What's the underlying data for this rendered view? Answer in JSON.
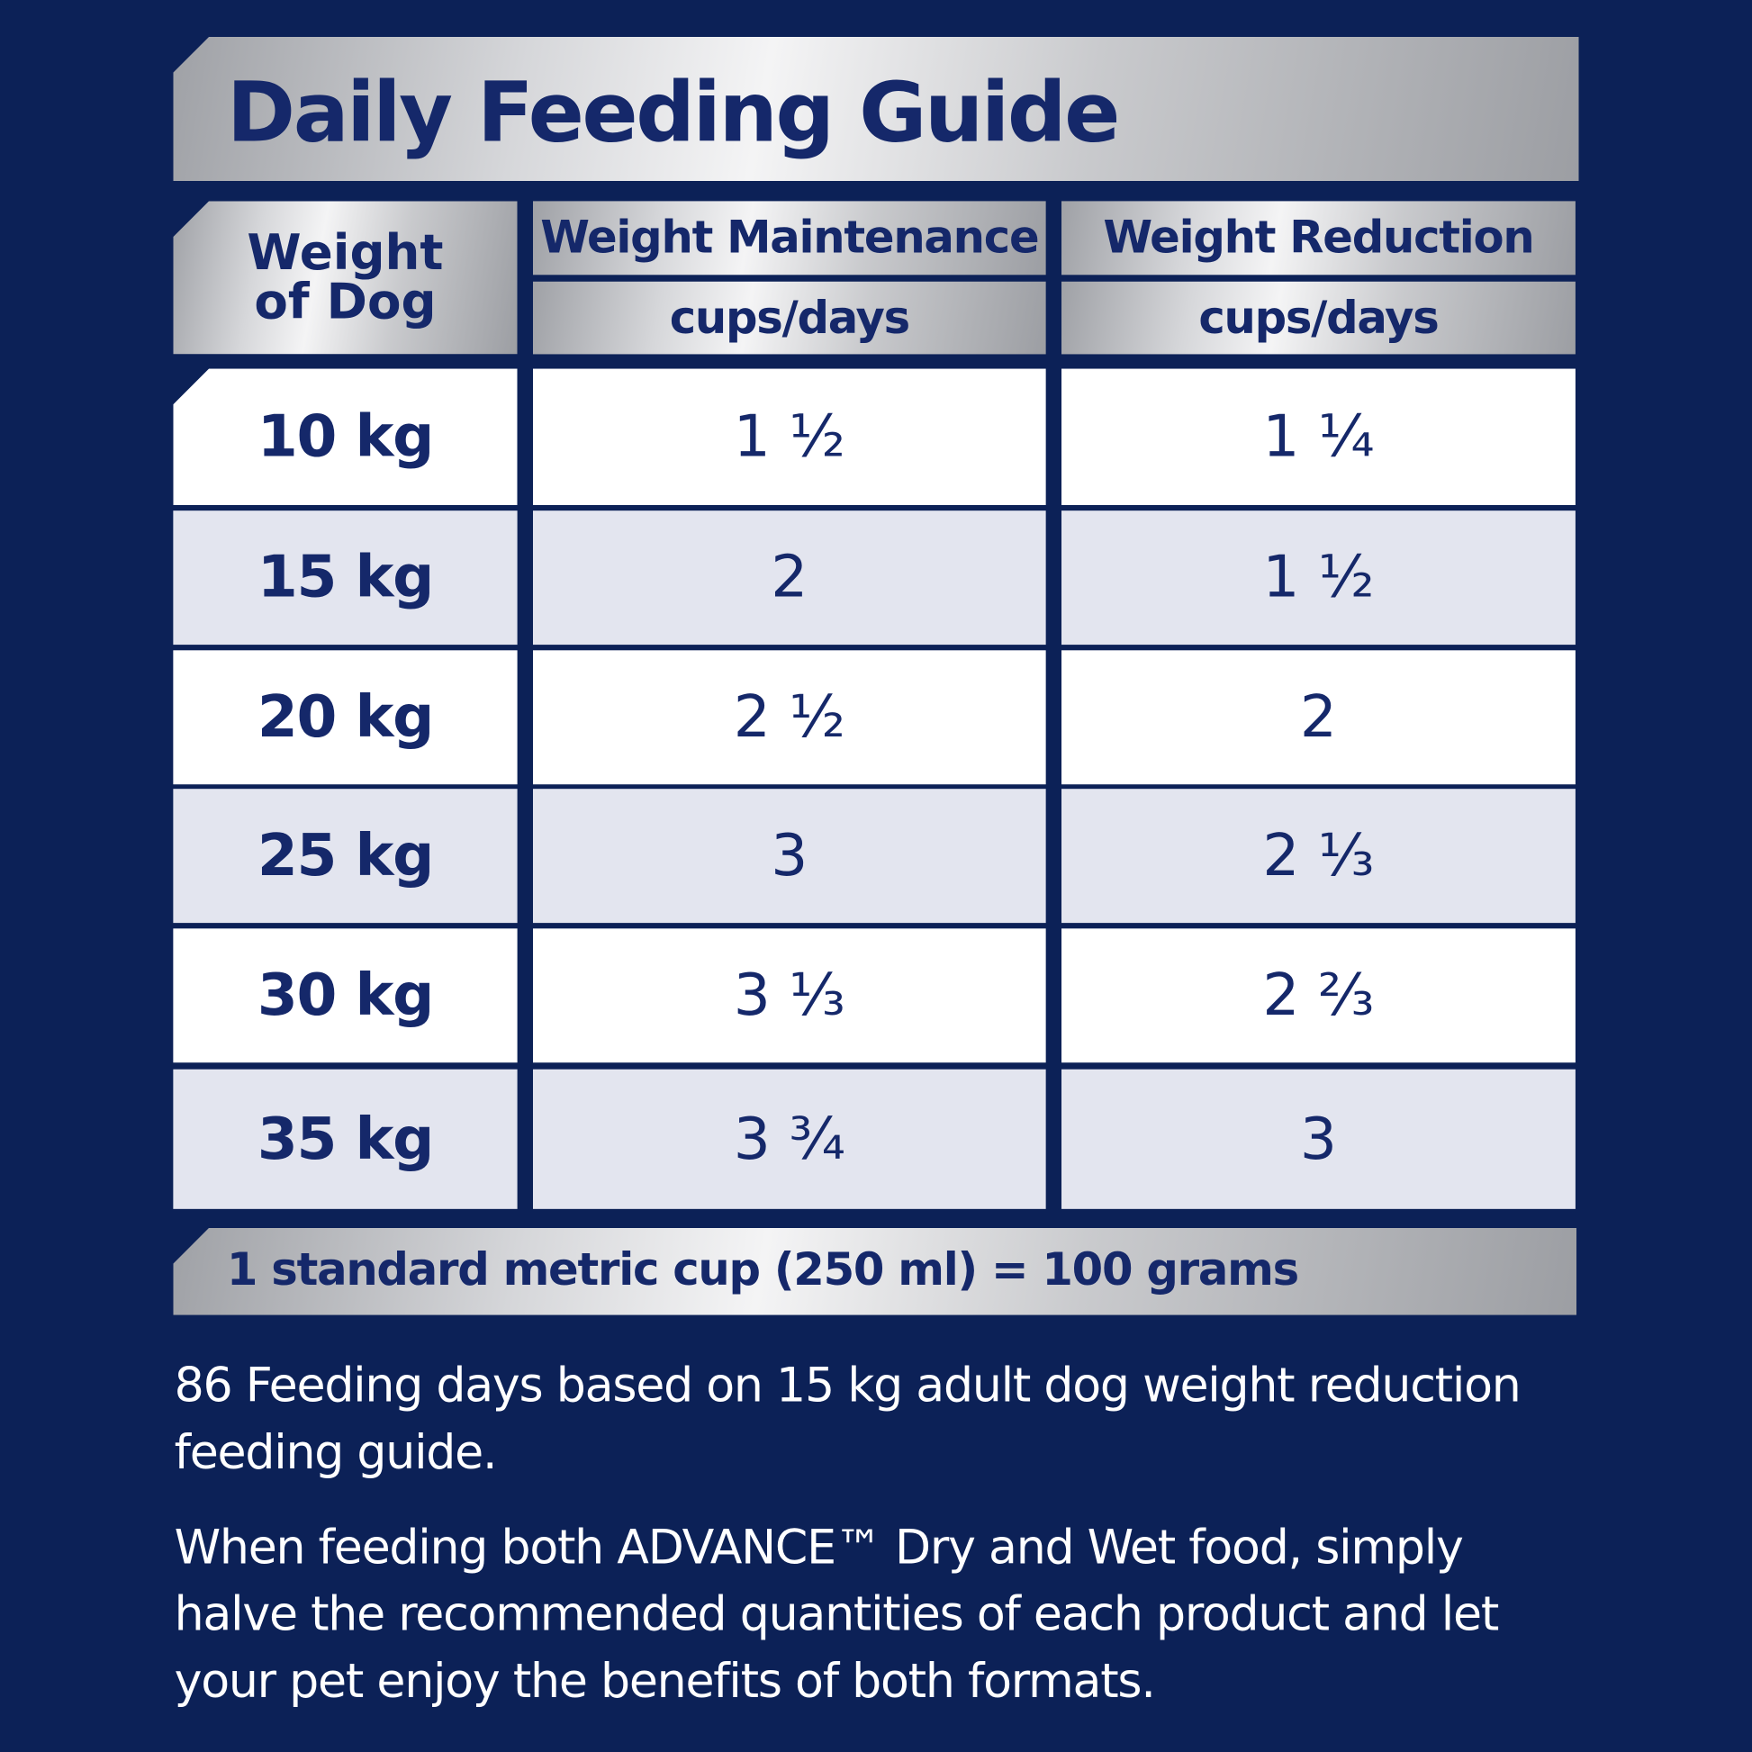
{
  "header": {
    "title": "Daily Feeding Guide"
  },
  "table": {
    "weight_header": [
      "Weight",
      "of Dog"
    ],
    "columns": [
      {
        "title": "Weight Maintenance",
        "unit": "cups/days"
      },
      {
        "title": "Weight Reduction",
        "unit": "cups/days"
      }
    ],
    "rows": [
      [
        "10 kg",
        "1 ½",
        "1 ¼"
      ],
      [
        "15 kg",
        "2",
        "1 ½"
      ],
      [
        "20 kg",
        "2 ½",
        "2"
      ],
      [
        "25 kg",
        "3",
        "2 ⅓"
      ],
      [
        "30 kg",
        "3 ⅓",
        "2 ⅔"
      ],
      [
        "35 kg",
        "3 ¾",
        "3"
      ]
    ]
  },
  "note": "1 standard metric cup (250 ml) = 100 grams",
  "paragraphs": [
    "86 Feeding days based on 15 kg adult dog weight reduction feeding guide.",
    "When feeding both ADVANCE™ Dry and Wet food, simply halve the recommended quantities of each product and let your pet enjoy the benefits of both formats."
  ]
}
